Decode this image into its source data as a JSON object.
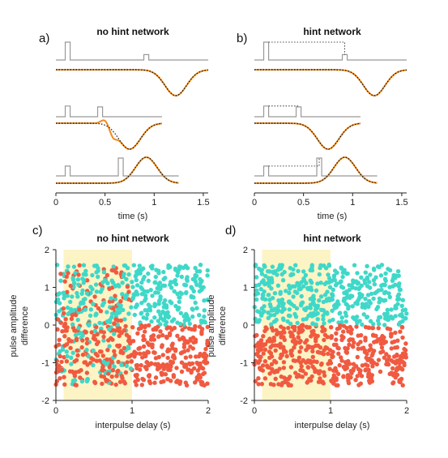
{
  "panel_labels": [
    "a)",
    "b)",
    "c)",
    "d)"
  ],
  "colors": {
    "pulse_line": "#999999",
    "network_output": "#f08a1c",
    "target": "#111111",
    "positive_points": "#3fd8c8",
    "negative_points": "#f05a40",
    "shade": "#fdf4c6"
  },
  "chart_data": [
    {
      "id": "a",
      "type": "line",
      "title": "no hint network",
      "xlabel": "time (s)",
      "xlim": [
        0,
        1.55
      ],
      "xticks": [
        "0",
        "0.5",
        "1",
        "1.5"
      ],
      "trials": [
        {
          "pulses": [
            {
              "t": 0.12,
              "amp": 1.0
            },
            {
              "t": 0.92,
              "amp": 0.3
            }
          ],
          "trace_end": 1.55,
          "response_center": 1.22,
          "sign": -1,
          "hint": false,
          "output_glitch": false
        },
        {
          "pulses": [
            {
              "t": 0.12,
              "amp": 0.6
            },
            {
              "t": 0.45,
              "amp": 0.55
            }
          ],
          "trace_end": 1.08,
          "response_center": 0.75,
          "sign": -1,
          "hint": false,
          "output_glitch": true
        },
        {
          "pulses": [
            {
              "t": 0.12,
              "amp": 0.55
            },
            {
              "t": 0.66,
              "amp": 1.0
            }
          ],
          "trace_end": 1.25,
          "response_center": 0.92,
          "sign": 1,
          "hint": false,
          "output_glitch": false
        }
      ]
    },
    {
      "id": "b",
      "type": "line",
      "title": "hint network",
      "xlabel": "time (s)",
      "xlim": [
        0,
        1.55
      ],
      "xticks": [
        "0",
        "0.5",
        "1",
        "1.5"
      ],
      "trials": [
        {
          "pulses": [
            {
              "t": 0.12,
              "amp": 1.0
            },
            {
              "t": 0.92,
              "amp": 0.3
            }
          ],
          "trace_end": 1.55,
          "response_center": 1.22,
          "sign": -1,
          "hint": true,
          "output_glitch": false
        },
        {
          "pulses": [
            {
              "t": 0.12,
              "amp": 0.6
            },
            {
              "t": 0.45,
              "amp": 0.55
            }
          ],
          "trace_end": 1.08,
          "response_center": 0.75,
          "sign": -1,
          "hint": true,
          "output_glitch": false
        },
        {
          "pulses": [
            {
              "t": 0.12,
              "amp": 0.55
            },
            {
              "t": 0.66,
              "amp": 1.0
            }
          ],
          "trace_end": 1.25,
          "response_center": 0.92,
          "sign": 1,
          "hint": true,
          "output_glitch": false
        }
      ]
    },
    {
      "id": "c",
      "type": "scatter",
      "title": "no hint network",
      "xlabel": "interpulse delay (s)",
      "ylabel_lines": [
        "pulse amplitude",
        "difference"
      ],
      "xlim": [
        0,
        2
      ],
      "ylim": [
        -2,
        2
      ],
      "xticks": [
        "0",
        "1",
        "2"
      ],
      "yticks": [
        "-2",
        "-1",
        "0",
        "1",
        "2"
      ],
      "shaded_region": [
        0.1,
        1.0
      ],
      "n_points": 900,
      "seed": 7,
      "y_spread": 1.6,
      "error_region": [
        0,
        1.0
      ],
      "error_fraction": 0.3,
      "series": [
        {
          "color": "#3fd8c8",
          "rule": "y > 0"
        },
        {
          "color": "#f05a40",
          "rule": "y < 0"
        }
      ]
    },
    {
      "id": "d",
      "type": "scatter",
      "title": "hint network",
      "xlabel": "interpulse delay (s)",
      "ylabel_lines": [
        "pulse amplitude",
        "difference"
      ],
      "xlim": [
        0,
        2
      ],
      "ylim": [
        -2,
        2
      ],
      "xticks": [
        "0",
        "1",
        "2"
      ],
      "yticks": [
        "-2",
        "-1",
        "0",
        "1",
        "2"
      ],
      "shaded_region": [
        0.1,
        1.0
      ],
      "n_points": 900,
      "seed": 7,
      "y_spread": 1.6,
      "error_region": [
        0,
        0
      ],
      "error_fraction": 0,
      "series": [
        {
          "color": "#3fd8c8",
          "rule": "y > 0"
        },
        {
          "color": "#f05a40",
          "rule": "y < 0"
        }
      ]
    }
  ]
}
